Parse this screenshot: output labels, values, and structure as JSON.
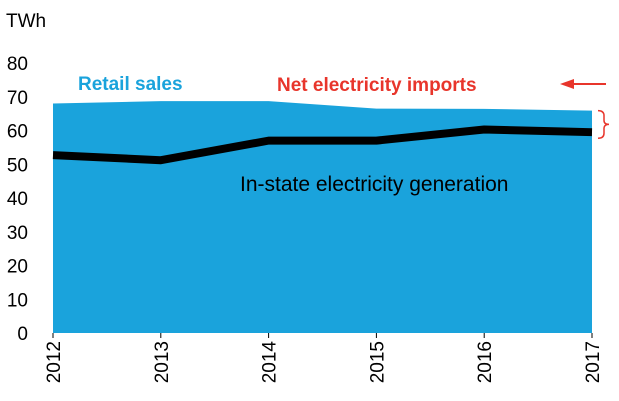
{
  "chart_data": {
    "type": "area",
    "unit_label": "TWh",
    "x": [
      "2012",
      "2013",
      "2014",
      "2015",
      "2016",
      "2017"
    ],
    "ylim": [
      0,
      80
    ],
    "yticks": [
      0,
      10,
      20,
      30,
      40,
      50,
      60,
      70,
      80
    ],
    "grid": false,
    "series": [
      {
        "name": "Retail sales",
        "kind": "area",
        "color": "#1aa3dc",
        "values": [
          68,
          68.7,
          68.7,
          66.5,
          66.4,
          65.9
        ]
      },
      {
        "name": "In-state electricity generation",
        "kind": "line",
        "color": "#000000",
        "values": [
          52.7,
          51.2,
          57,
          57,
          60.3,
          59.5
        ]
      }
    ],
    "annotations": [
      {
        "text": "Net electricity imports",
        "color": "#e8352b"
      }
    ]
  }
}
